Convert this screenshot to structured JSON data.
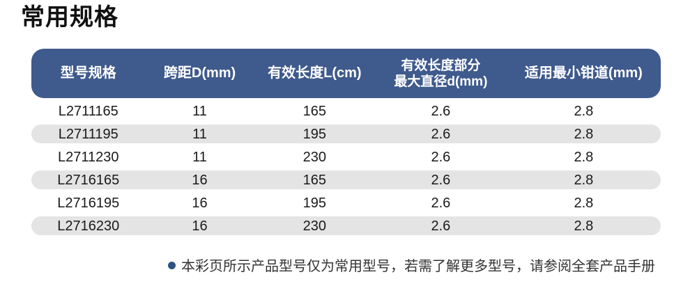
{
  "title": "常用规格",
  "colors": {
    "header_bg": "#3f5a8c",
    "header_text": "#ffffff",
    "alt_row_bg": "#e4e4e4",
    "body_text": "#1a1a1a",
    "note_bullet": "#2d5382",
    "note_text": "#333333"
  },
  "table": {
    "columns": [
      {
        "label": "型号规格"
      },
      {
        "label": "跨距D(mm)"
      },
      {
        "label": "有效长度L(cm)"
      },
      {
        "label": "有效长度部分",
        "label2": "最大直径d(mm)"
      },
      {
        "label": "适用最小钳道(mm)"
      }
    ],
    "rows": [
      {
        "model": "L2711165",
        "span_d": "11",
        "length_l": "165",
        "max_d": "2.6",
        "min_channel": "2.8"
      },
      {
        "model": "L2711195",
        "span_d": "11",
        "length_l": "195",
        "max_d": "2.6",
        "min_channel": "2.8"
      },
      {
        "model": "L2711230",
        "span_d": "11",
        "length_l": "230",
        "max_d": "2.6",
        "min_channel": "2.8"
      },
      {
        "model": "L2716165",
        "span_d": "16",
        "length_l": "165",
        "max_d": "2.6",
        "min_channel": "2.8"
      },
      {
        "model": "L2716195",
        "span_d": "16",
        "length_l": "195",
        "max_d": "2.6",
        "min_channel": "2.8"
      },
      {
        "model": "L2716230",
        "span_d": "16",
        "length_l": "230",
        "max_d": "2.6",
        "min_channel": "2.8"
      }
    ]
  },
  "note": {
    "text": "本彩页所示产品型号仅为常用型号，若需了解更多型号，请参阅全套产品手册"
  }
}
